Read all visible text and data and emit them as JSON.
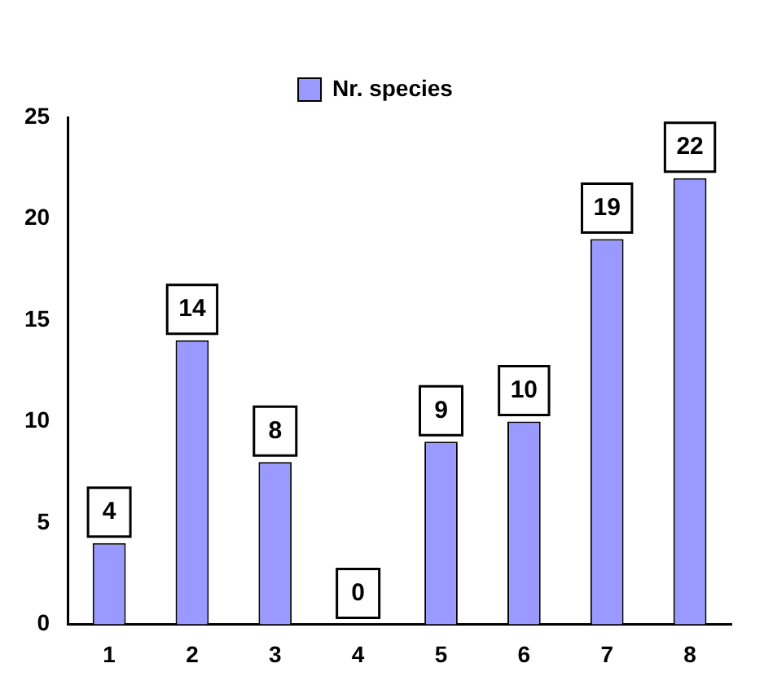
{
  "chart_data": {
    "type": "bar",
    "categories": [
      "1",
      "2",
      "3",
      "4",
      "5",
      "6",
      "7",
      "8"
    ],
    "series": [
      {
        "name": "Nr. species",
        "color": "#9999ff",
        "values": [
          4,
          14,
          8,
          0,
          9,
          10,
          19,
          22
        ]
      }
    ],
    "ylim": [
      0,
      25
    ],
    "yticks": [
      0,
      5,
      10,
      15,
      20,
      25
    ],
    "grid": false,
    "legend": "top",
    "data_labels": true
  }
}
